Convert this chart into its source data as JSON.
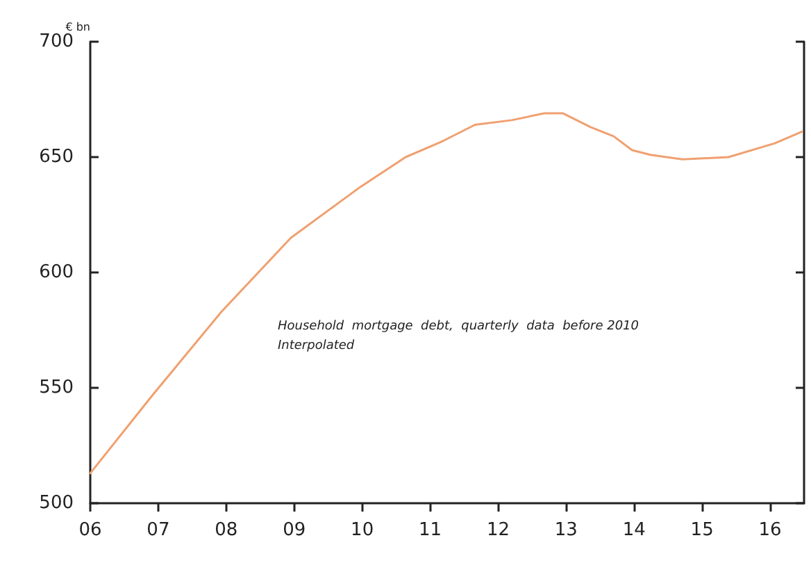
{
  "chart_data": {
    "type": "line",
    "ylabel": "€ bn",
    "annotations": [
      "Household  mortgage  debt,  quarterly  data  before 2010  Interpolated"
    ],
    "x": [
      2006.0,
      2006.92,
      2007.93,
      2008.95,
      2009.97,
      2010.64,
      2011.19,
      2011.66,
      2012.2,
      2012.68,
      2012.95,
      2013.36,
      2013.7,
      2013.97,
      2014.24,
      2014.71,
      2015.39,
      2016.07,
      2016.47
    ],
    "series": [
      {
        "color": "#f0a070",
        "values": [
          513,
          547,
          583,
          615,
          637,
          650,
          657,
          664,
          666,
          669,
          669,
          663,
          659,
          653,
          651,
          649,
          650,
          656,
          661
        ]
      }
    ],
    "xlim": [
      2006,
      2016.5
    ],
    "xticks": [
      {
        "value": 2006,
        "label": "06"
      },
      {
        "value": 2007,
        "label": "07"
      },
      {
        "value": 2008,
        "label": "08"
      },
      {
        "value": 2009,
        "label": "09"
      },
      {
        "value": 2010,
        "label": "10"
      },
      {
        "value": 2011,
        "label": "11"
      },
      {
        "value": 2012,
        "label": "12"
      },
      {
        "value": 2013,
        "label": "13"
      },
      {
        "value": 2014,
        "label": "14"
      },
      {
        "value": 2015,
        "label": "15"
      },
      {
        "value": 2016,
        "label": "16"
      }
    ],
    "ylim": [
      500,
      700
    ],
    "yticks": [
      500,
      550,
      600,
      650,
      700
    ],
    "marker": "none",
    "line_style": "solid"
  }
}
